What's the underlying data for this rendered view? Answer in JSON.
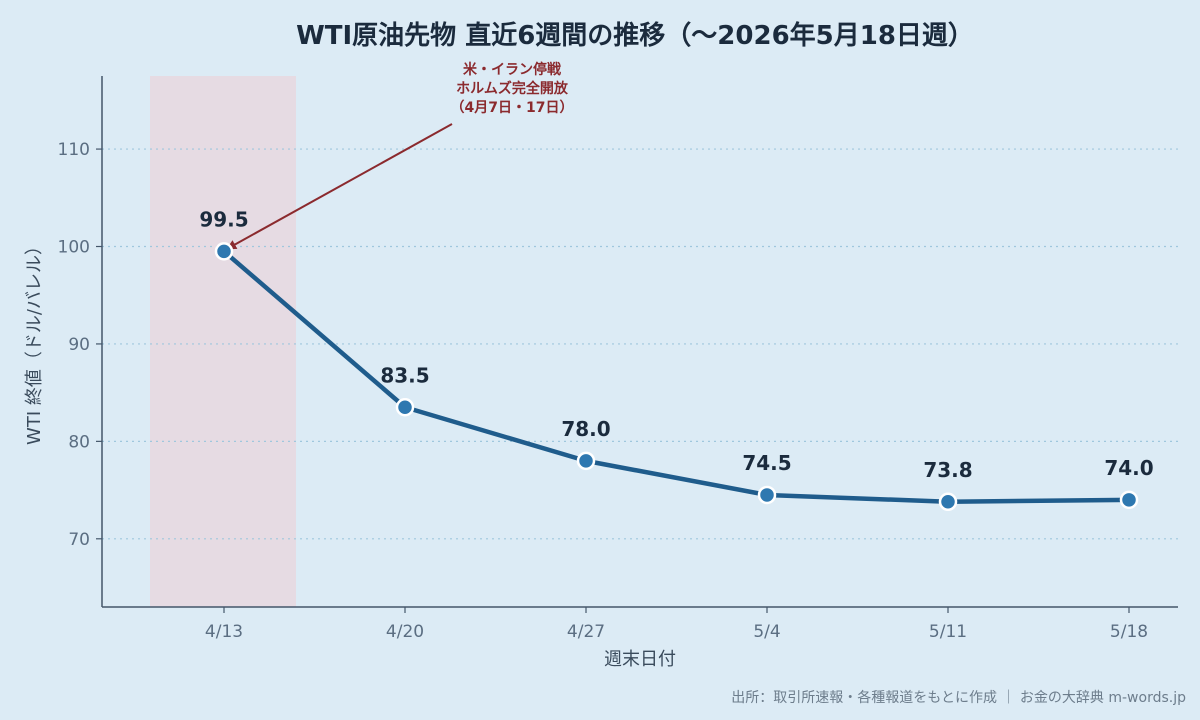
{
  "colors": {
    "background": "#dcebf5",
    "line": "#1f5c8c",
    "marker_fill": "#2e78b0",
    "marker_stroke": "#ffffff",
    "highlight_band": "#e8d8df",
    "annotation": "#8b2a2e",
    "grid": "#9fc7dd",
    "axis": "#44566a"
  },
  "chart_data": {
    "type": "line",
    "title": "WTI原油先物 直近6週間の推移（〜2026年5月18日週）",
    "xlabel": "週末日付",
    "ylabel": "WTI 終値（ドル/バレル）",
    "categories": [
      "4/13",
      "4/20",
      "4/27",
      "5/4",
      "5/11",
      "5/18"
    ],
    "series": [
      {
        "values": [
          99.5,
          83.5,
          78.0,
          74.5,
          73.8,
          74.0
        ]
      }
    ],
    "data_labels": [
      "99.5",
      "83.5",
      "78.0",
      "74.5",
      "73.8",
      "74.0"
    ],
    "ylim": [
      63,
      117.5
    ],
    "yticks": [
      70,
      80,
      90,
      100,
      110
    ],
    "grid": "horizontal dotted",
    "highlight_band": {
      "category": "4/13"
    },
    "annotation": {
      "lines": [
        "米・イラン停戦",
        "ホルムズ完全開放",
        "（4月7日・17日）"
      ],
      "target_category": "4/13"
    }
  },
  "source_text": "出所：取引所速報・各種報道をもとに作成 ｜ お金の大辞典 m-words.jp"
}
